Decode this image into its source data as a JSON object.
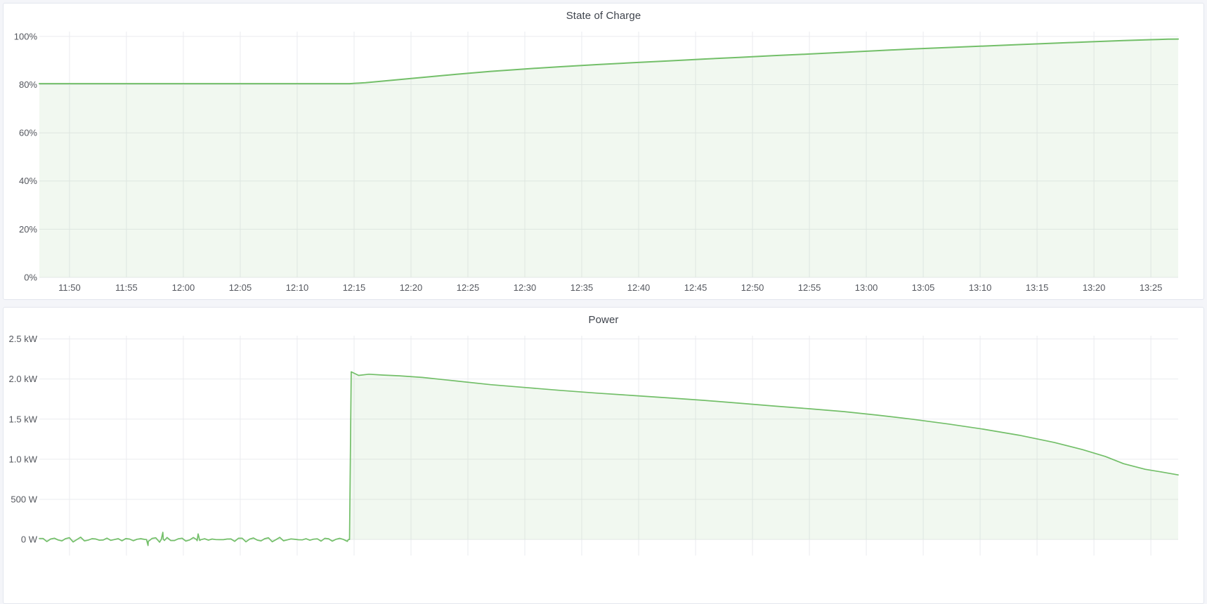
{
  "page": {
    "background_color": "#f4f5f9",
    "panel_background_color": "#ffffff",
    "panel_border_color": "#e3e6ee",
    "grid_color": "#eaebef",
    "axis_label_color": "#54575e",
    "series_green": "#73bf69"
  },
  "chart_data": [
    {
      "type": "area",
      "title": "State of Charge",
      "legend_position": "none",
      "grid": true,
      "x_domain_minutes": [
        707.35,
        807.4
      ],
      "y_domain": [
        0,
        102
      ],
      "x_ticks": [
        {
          "minute": 710,
          "label": "11:50"
        },
        {
          "minute": 715,
          "label": "11:55"
        },
        {
          "minute": 720,
          "label": "12:00"
        },
        {
          "minute": 725,
          "label": "12:05"
        },
        {
          "minute": 730,
          "label": "12:10"
        },
        {
          "minute": 735,
          "label": "12:15"
        },
        {
          "minute": 740,
          "label": "12:20"
        },
        {
          "minute": 745,
          "label": "12:25"
        },
        {
          "minute": 750,
          "label": "12:30"
        },
        {
          "minute": 755,
          "label": "12:35"
        },
        {
          "minute": 760,
          "label": "12:40"
        },
        {
          "minute": 765,
          "label": "12:45"
        },
        {
          "minute": 770,
          "label": "12:50"
        },
        {
          "minute": 775,
          "label": "12:55"
        },
        {
          "minute": 780,
          "label": "13:00"
        },
        {
          "minute": 785,
          "label": "13:05"
        },
        {
          "minute": 790,
          "label": "13:10"
        },
        {
          "minute": 795,
          "label": "13:15"
        },
        {
          "minute": 800,
          "label": "13:20"
        },
        {
          "minute": 805,
          "label": "13:25"
        }
      ],
      "y_ticks": [
        {
          "value": 0,
          "label": "0%"
        },
        {
          "value": 20,
          "label": "20%"
        },
        {
          "value": 40,
          "label": "40%"
        },
        {
          "value": 60,
          "label": "60%"
        },
        {
          "value": 80,
          "label": "80%"
        },
        {
          "value": 100,
          "label": "100%"
        }
      ],
      "show_x_labels": true,
      "series": [
        {
          "name": "State of Charge",
          "color": "#73bf69",
          "fill_opacity": 0.1,
          "line_width": 2,
          "points": [
            [
              707.35,
              80.4
            ],
            [
              715,
              80.4
            ],
            [
              725,
              80.4
            ],
            [
              734.6,
              80.4
            ],
            [
              736,
              80.8
            ],
            [
              738.5,
              81.9
            ],
            [
              741,
              83.0
            ],
            [
              744,
              84.3
            ],
            [
              747,
              85.5
            ],
            [
              750,
              86.5
            ],
            [
              753,
              87.4
            ],
            [
              756.3,
              88.3
            ],
            [
              759.5,
              89.1
            ],
            [
              762.6,
              89.85
            ],
            [
              765.7,
              90.6
            ],
            [
              768.8,
              91.3
            ],
            [
              771.8,
              92.0
            ],
            [
              775,
              92.7
            ],
            [
              778,
              93.4
            ],
            [
              781,
              94.1
            ],
            [
              784,
              94.8
            ],
            [
              787.2,
              95.4
            ],
            [
              790.3,
              96.0
            ],
            [
              793.4,
              96.6
            ],
            [
              796.5,
              97.2
            ],
            [
              799.5,
              97.75
            ],
            [
              802.6,
              98.3
            ],
            [
              805,
              98.65
            ],
            [
              806.5,
              98.85
            ],
            [
              807.4,
              98.9
            ]
          ]
        }
      ]
    },
    {
      "type": "area",
      "title": "Power",
      "legend_position": "none",
      "grid": true,
      "x_domain_minutes": [
        707.35,
        807.4
      ],
      "y_domain": [
        -0.2,
        2.54
      ],
      "x_ticks": [
        {
          "minute": 710,
          "label": "11:50"
        },
        {
          "minute": 715,
          "label": "11:55"
        },
        {
          "minute": 720,
          "label": "12:00"
        },
        {
          "minute": 725,
          "label": "12:05"
        },
        {
          "minute": 730,
          "label": "12:10"
        },
        {
          "minute": 735,
          "label": "12:15"
        },
        {
          "minute": 740,
          "label": "12:20"
        },
        {
          "minute": 745,
          "label": "12:25"
        },
        {
          "minute": 750,
          "label": "12:30"
        },
        {
          "minute": 755,
          "label": "12:35"
        },
        {
          "minute": 760,
          "label": "12:40"
        },
        {
          "minute": 765,
          "label": "12:45"
        },
        {
          "minute": 770,
          "label": "12:50"
        },
        {
          "minute": 775,
          "label": "12:55"
        },
        {
          "minute": 780,
          "label": "13:00"
        },
        {
          "minute": 785,
          "label": "13:05"
        },
        {
          "minute": 790,
          "label": "13:10"
        },
        {
          "minute": 795,
          "label": "13:15"
        },
        {
          "minute": 800,
          "label": "13:20"
        },
        {
          "minute": 805,
          "label": "13:25"
        }
      ],
      "y_ticks": [
        {
          "value": 0,
          "label": "0 W"
        },
        {
          "value": 0.5,
          "label": "500 W"
        },
        {
          "value": 1.0,
          "label": "1.0 kW"
        },
        {
          "value": 1.5,
          "label": "1.5 kW"
        },
        {
          "value": 2.0,
          "label": "2.0 kW"
        },
        {
          "value": 2.5,
          "label": "2.5 kW"
        }
      ],
      "show_x_labels": false,
      "noise": {
        "start_minute": 707.35,
        "end_minute": 734.5,
        "baseline_kw": 0,
        "amplitude_kw": 0.032,
        "spikes": [
          {
            "minute": 716.9,
            "kw": -0.075
          },
          {
            "minute": 718.2,
            "kw": 0.09
          },
          {
            "minute": 721.3,
            "kw": 0.07
          }
        ]
      },
      "series": [
        {
          "name": "Power",
          "color": "#73bf69",
          "fill_opacity": 0.1,
          "line_width": 1.7,
          "points": [
            [
              734.6,
              0.0
            ],
            [
              734.75,
              2.09
            ],
            [
              735.4,
              2.045
            ],
            [
              736.3,
              2.06
            ],
            [
              737.5,
              2.05
            ],
            [
              739,
              2.04
            ],
            [
              741,
              2.02
            ],
            [
              744,
              1.975
            ],
            [
              747,
              1.93
            ],
            [
              750,
              1.895
            ],
            [
              753,
              1.86
            ],
            [
              756.3,
              1.825
            ],
            [
              759.5,
              1.795
            ],
            [
              762.6,
              1.765
            ],
            [
              765.7,
              1.735
            ],
            [
              768.8,
              1.7
            ],
            [
              771.8,
              1.665
            ],
            [
              775,
              1.63
            ],
            [
              778,
              1.595
            ],
            [
              781,
              1.55
            ],
            [
              784,
              1.5
            ],
            [
              787.2,
              1.44
            ],
            [
              790.3,
              1.375
            ],
            [
              793.4,
              1.3
            ],
            [
              796.5,
              1.21
            ],
            [
              799,
              1.12
            ],
            [
              801,
              1.035
            ],
            [
              802.6,
              0.945
            ],
            [
              804.5,
              0.875
            ],
            [
              806,
              0.84
            ],
            [
              807.4,
              0.805
            ]
          ]
        }
      ]
    }
  ]
}
